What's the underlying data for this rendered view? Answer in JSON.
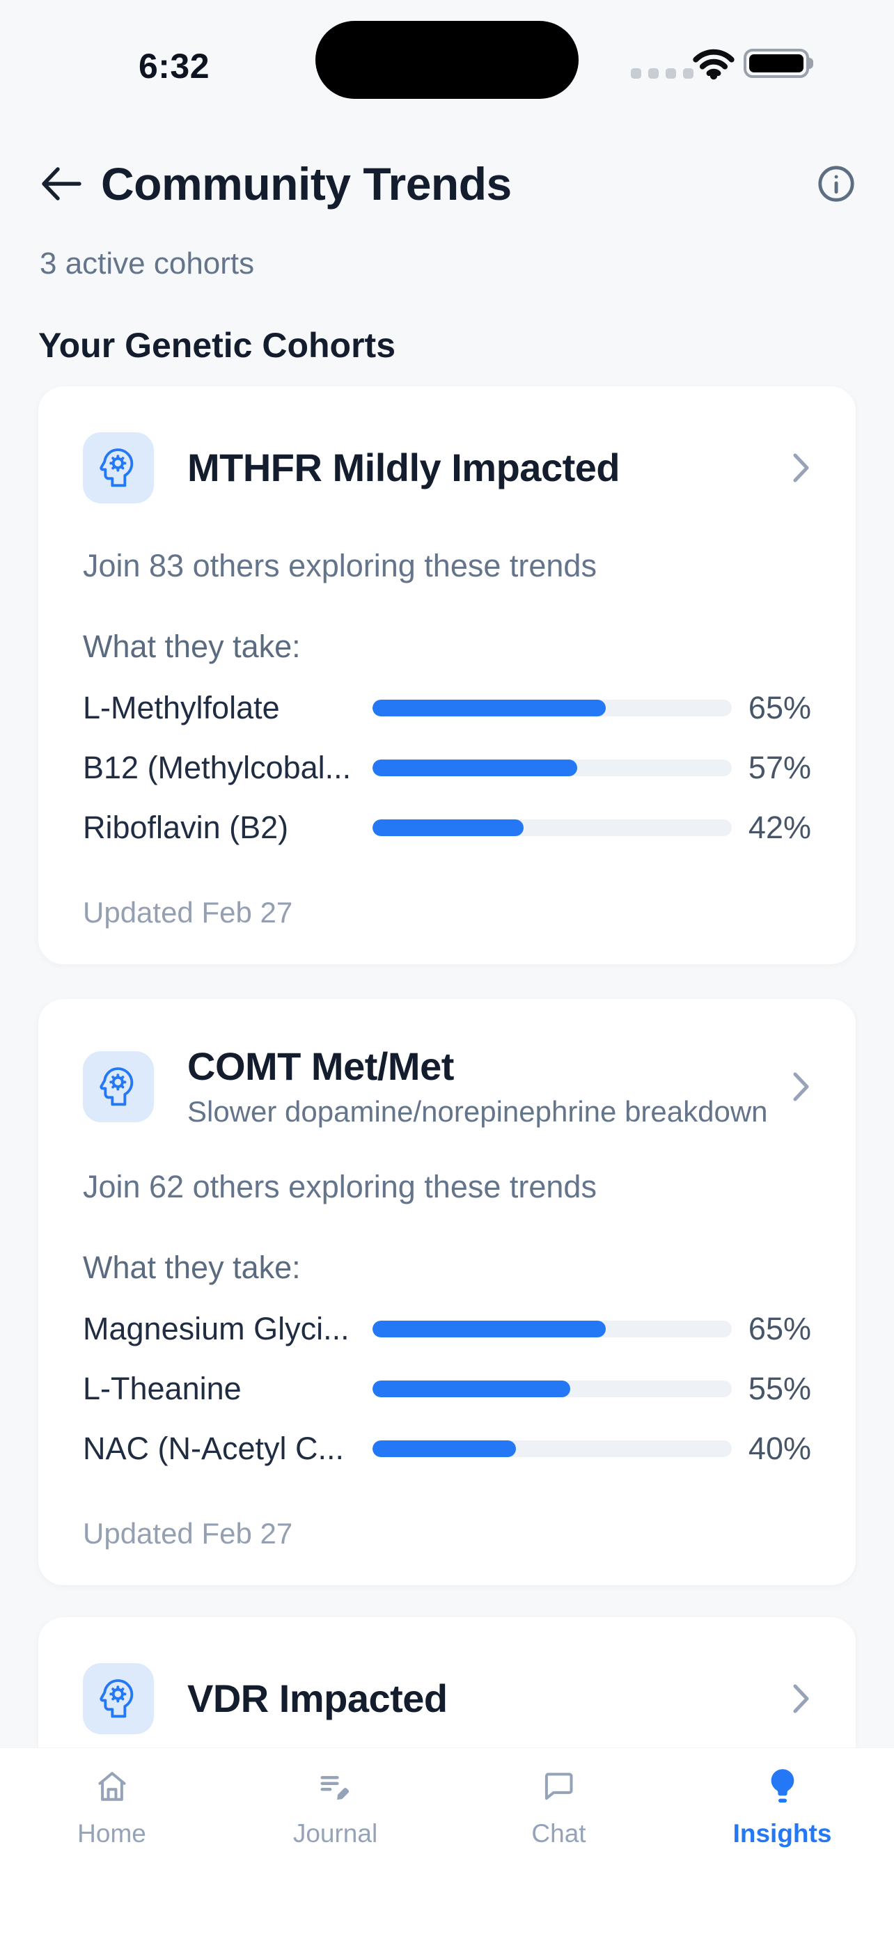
{
  "colors": {
    "accent_blue": "#2478f6",
    "icon_tile_bg": "#ddeafc",
    "bar_track": "#eef1f6",
    "page_bg": "#f6f8fa",
    "card_bg": "#ffffff",
    "title_ink": "#131d2e",
    "secondary_text": "#64748b",
    "muted_text": "#94a0b2",
    "tab_inactive": "#94a3b8"
  },
  "status_bar": {
    "time": "6:32",
    "icons": [
      "cellular-signal-icon",
      "wifi-icon",
      "battery-icon"
    ]
  },
  "header": {
    "back_icon": "back-arrow-icon",
    "title": "Community Trends",
    "info_icon": "info-icon",
    "subtitle": "3 active cohorts"
  },
  "section": {
    "title": "Your Genetic Cohorts"
  },
  "cohorts": [
    {
      "icon": "psychology-icon",
      "title": "MTHFR Mildly Impacted",
      "join_text": "Join 83 others exploring these trends",
      "what_label": "What they take:",
      "updated": "Updated Feb 27",
      "supplements": [
        {
          "name": "L-Methylfolate",
          "pct": 65,
          "pct_label": "65%"
        },
        {
          "name": "B12 (Methylcobal...",
          "pct": 57,
          "pct_label": "57%"
        },
        {
          "name": "Riboflavin (B2)",
          "pct": 42,
          "pct_label": "42%"
        }
      ]
    },
    {
      "icon": "psychology-icon",
      "title": "COMT Met/Met",
      "subtitle": "Slower dopamine/norepinephrine breakdown",
      "join_text": "Join 62 others exploring these trends",
      "what_label": "What they take:",
      "updated": "Updated Feb 27",
      "supplements": [
        {
          "name": "Magnesium Glyci...",
          "pct": 65,
          "pct_label": "65%"
        },
        {
          "name": "L-Theanine",
          "pct": 55,
          "pct_label": "55%"
        },
        {
          "name": "NAC (N-Acetyl C...",
          "pct": 40,
          "pct_label": "40%"
        }
      ]
    },
    {
      "icon": "psychology-icon",
      "title": "VDR Impacted"
    }
  ],
  "tab_bar": {
    "tabs": [
      {
        "label": "Home",
        "icon": "home-icon",
        "active": false
      },
      {
        "label": "Journal",
        "icon": "journal-icon",
        "active": false
      },
      {
        "label": "Chat",
        "icon": "chat-icon",
        "active": false
      },
      {
        "label": "Insights",
        "icon": "lightbulb-icon",
        "active": true
      }
    ]
  }
}
